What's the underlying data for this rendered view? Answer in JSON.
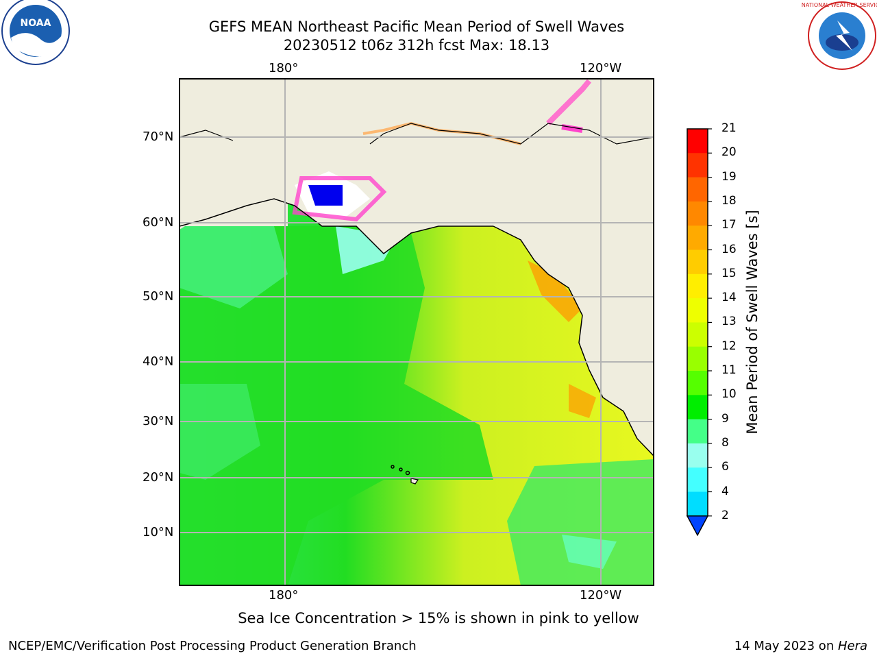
{
  "header": {
    "title_line1": "GEFS MEAN Northeast Pacific Mean Period of Swell Waves",
    "title_line2": "20230512 t06z 312h fcst   Max: 18.13"
  },
  "logos": {
    "left": {
      "name": "noaa-logo",
      "text": "NOAA"
    },
    "right": {
      "name": "nws-logo",
      "text": "NATIONAL WEATHER SERVICE"
    }
  },
  "map": {
    "lon_labels_top": [
      "180°",
      "120°W"
    ],
    "lon_labels_bottom": [
      "180°",
      "120°W"
    ],
    "lat_labels": [
      "70°N",
      "60°N",
      "50°N",
      "40°N",
      "30°N",
      "20°N",
      "10°N"
    ],
    "land_color": "#efedde",
    "grid_color": "#b4b4b4"
  },
  "colorbar": {
    "label": "Mean Period of Swell Waves [s]",
    "ticks": [
      "21",
      "20",
      "19",
      "18",
      "17",
      "16",
      "15",
      "14",
      "13",
      "12",
      "11",
      "10",
      "9",
      "8",
      "6",
      "4",
      "2"
    ],
    "colors": [
      "#ff0000",
      "#ff3300",
      "#ff6600",
      "#ff8800",
      "#ffaa00",
      "#ffcc00",
      "#ffee00",
      "#eeff00",
      "#ccff00",
      "#99ff00",
      "#55ff00",
      "#00ee00",
      "#44ff88",
      "#99ffee",
      "#44ffff",
      "#00ddff",
      "#0099ff",
      "#0044ff"
    ]
  },
  "caption": "Sea Ice Concentration > 15% is shown in pink to yellow",
  "footer": {
    "left": "NCEP/EMC/Verification Post Processing Product Generation Branch",
    "date": "14 May 2023 on ",
    "machine": "Hera"
  }
}
